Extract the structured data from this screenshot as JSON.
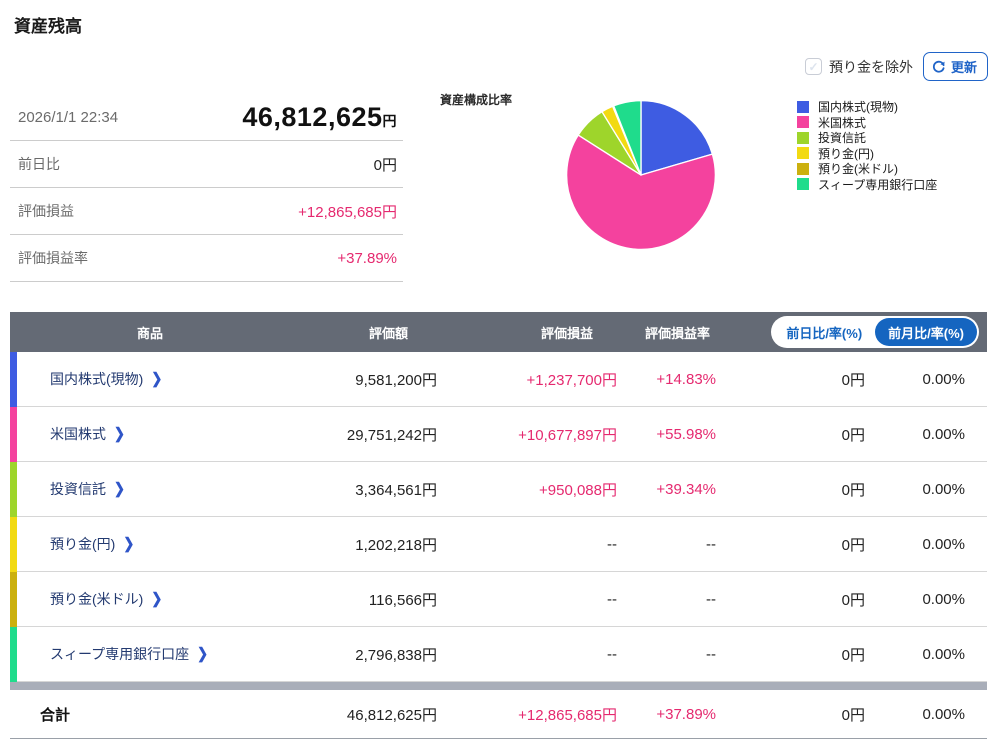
{
  "page": {
    "title": "資産残高"
  },
  "controls": {
    "exclude_checkbox_label": "預り金を除外",
    "checkbox_checked": false,
    "refresh_label": "更新"
  },
  "summary": {
    "timestamp": "2026/1/1 22:34",
    "total_value": "46,812,625",
    "total_unit": "円",
    "rows": [
      {
        "label": "前日比",
        "value": "0円"
      },
      {
        "label": "評価損益",
        "value": "+12,865,685円"
      },
      {
        "label": "評価損益率",
        "value": "+37.89%"
      }
    ]
  },
  "chart_data": {
    "type": "pie",
    "title": "資産構成比率",
    "labels": [
      "国内株式(現物)",
      "米国株式",
      "投資信託",
      "預り金(円)",
      "預り金(米ドル)",
      "スィープ専用銀行口座"
    ],
    "values": [
      9581200,
      29751242,
      3364561,
      1202218,
      116566,
      2796838
    ],
    "colors": [
      "#3E5CE2",
      "#F4429E",
      "#9ED52B",
      "#F2DA12",
      "#CBB00F",
      "#1FDC8C"
    ],
    "start_angle_deg": -90,
    "direction": "clockwise",
    "legend_position": "right",
    "accent_pink": "#e5296f"
  },
  "table": {
    "headers": {
      "product": "商品",
      "value": "評価額",
      "pl": "評価損益",
      "pl_rate": "評価損益率"
    },
    "toggle": [
      {
        "label": "前日比/率(%)",
        "selected": false
      },
      {
        "label": "前月比/率(%)",
        "selected": true
      }
    ],
    "rows": [
      {
        "name": "国内株式(現物)",
        "color": "#3E5CE2",
        "value": "9,581,200円",
        "pl": "+1,237,700円",
        "pl_rate": "+14.83%",
        "chg": "0円",
        "chg_rate": "0.00%"
      },
      {
        "name": "米国株式",
        "color": "#F4429E",
        "value": "29,751,242円",
        "pl": "+10,677,897円",
        "pl_rate": "+55.98%",
        "chg": "0円",
        "chg_rate": "0.00%"
      },
      {
        "name": "投資信託",
        "color": "#9ED52B",
        "value": "3,364,561円",
        "pl": "+950,088円",
        "pl_rate": "+39.34%",
        "chg": "0円",
        "chg_rate": "0.00%"
      },
      {
        "name": "預り金(円)",
        "color": "#F2DA12",
        "value": "1,202,218円",
        "pl": "--",
        "pl_rate": "--",
        "chg": "0円",
        "chg_rate": "0.00%"
      },
      {
        "name": "預り金(米ドル)",
        "color": "#CBB00F",
        "value": "116,566円",
        "pl": "--",
        "pl_rate": "--",
        "chg": "0円",
        "chg_rate": "0.00%"
      },
      {
        "name": "スィープ専用銀行口座",
        "color": "#1FDC8C",
        "value": "2,796,838円",
        "pl": "--",
        "pl_rate": "--",
        "chg": "0円",
        "chg_rate": "0.00%"
      }
    ],
    "total": {
      "name": "合計",
      "value": "46,812,625円",
      "pl": "+12,865,685円",
      "pl_rate": "+37.89%",
      "chg": "0円",
      "chg_rate": "0.00%"
    }
  }
}
